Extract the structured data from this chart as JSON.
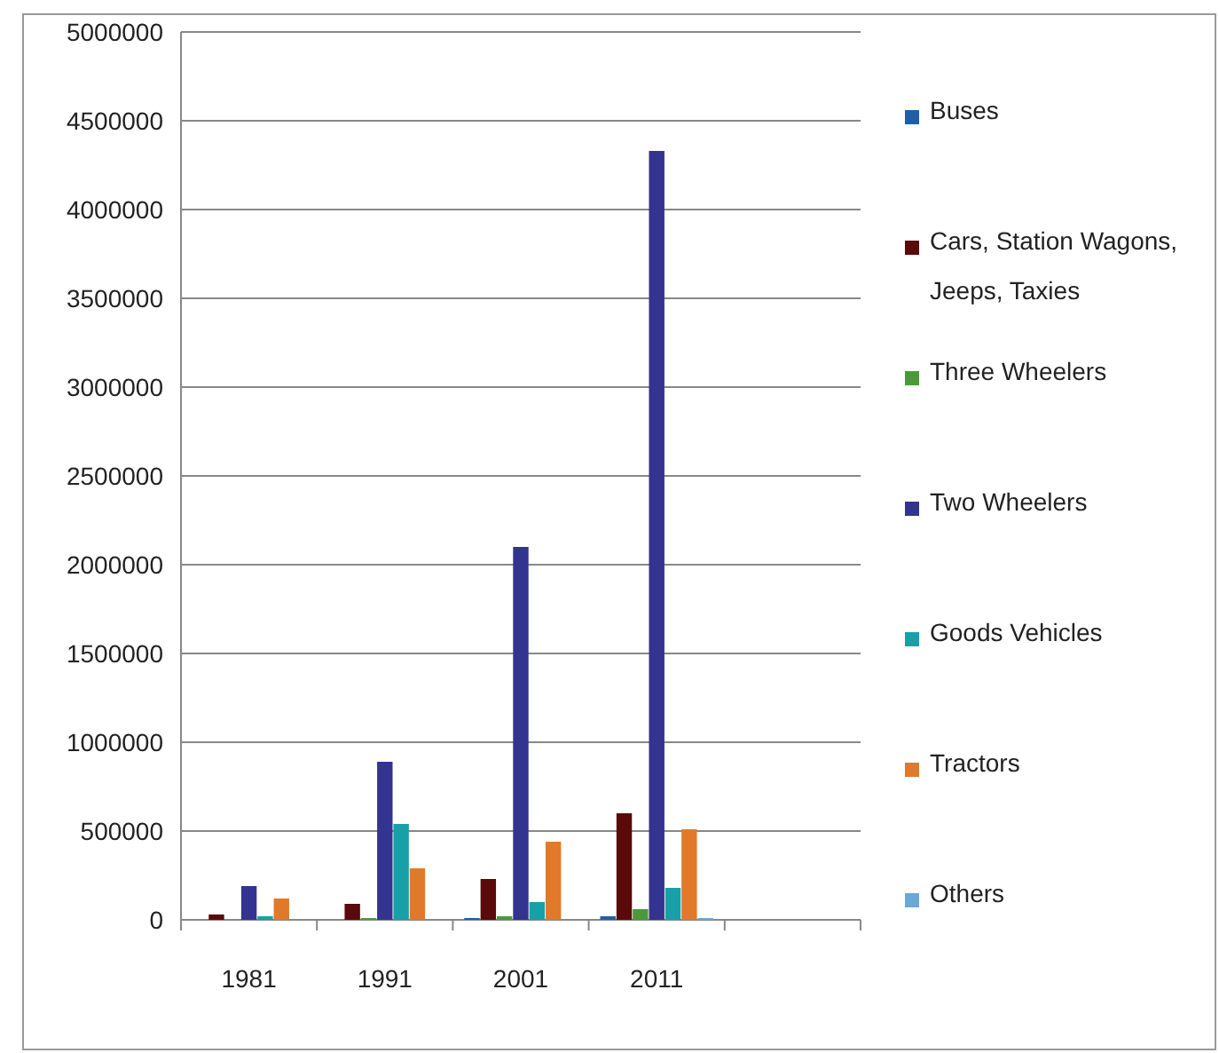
{
  "chart_data": {
    "type": "bar",
    "categories": [
      "1981",
      "1991",
      "2001",
      "2011",
      null
    ],
    "series": [
      {
        "name": "Buses",
        "color": "#1f5fa8",
        "values": [
          0,
          0,
          10000,
          20000,
          null
        ]
      },
      {
        "name": "Cars, Station Wagons, Jeeps, Taxies",
        "color": "#5a0a0a",
        "values": [
          30000,
          90000,
          230000,
          600000,
          null
        ]
      },
      {
        "name": "Three Wheelers",
        "color": "#4a9a3a",
        "values": [
          0,
          10000,
          20000,
          60000,
          null
        ]
      },
      {
        "name": "Two Wheelers",
        "color": "#333390",
        "values": [
          190000,
          890000,
          2100000,
          4330000,
          null
        ]
      },
      {
        "name": "Goods Vehicles",
        "color": "#18a0a8",
        "values": [
          20000,
          540000,
          100000,
          180000,
          null
        ]
      },
      {
        "name": "Tractors",
        "color": "#e07a2a",
        "values": [
          120000,
          290000,
          440000,
          510000,
          null
        ]
      },
      {
        "name": "Others",
        "color": "#6aa8d8",
        "values": [
          0,
          0,
          0,
          10000,
          null
        ]
      }
    ],
    "ylim": [
      0,
      5000000
    ],
    "yticks": [
      0,
      500000,
      1000000,
      1500000,
      2000000,
      2500000,
      3000000,
      3500000,
      4000000,
      4500000,
      5000000
    ],
    "grid": "y",
    "legend": "right"
  }
}
